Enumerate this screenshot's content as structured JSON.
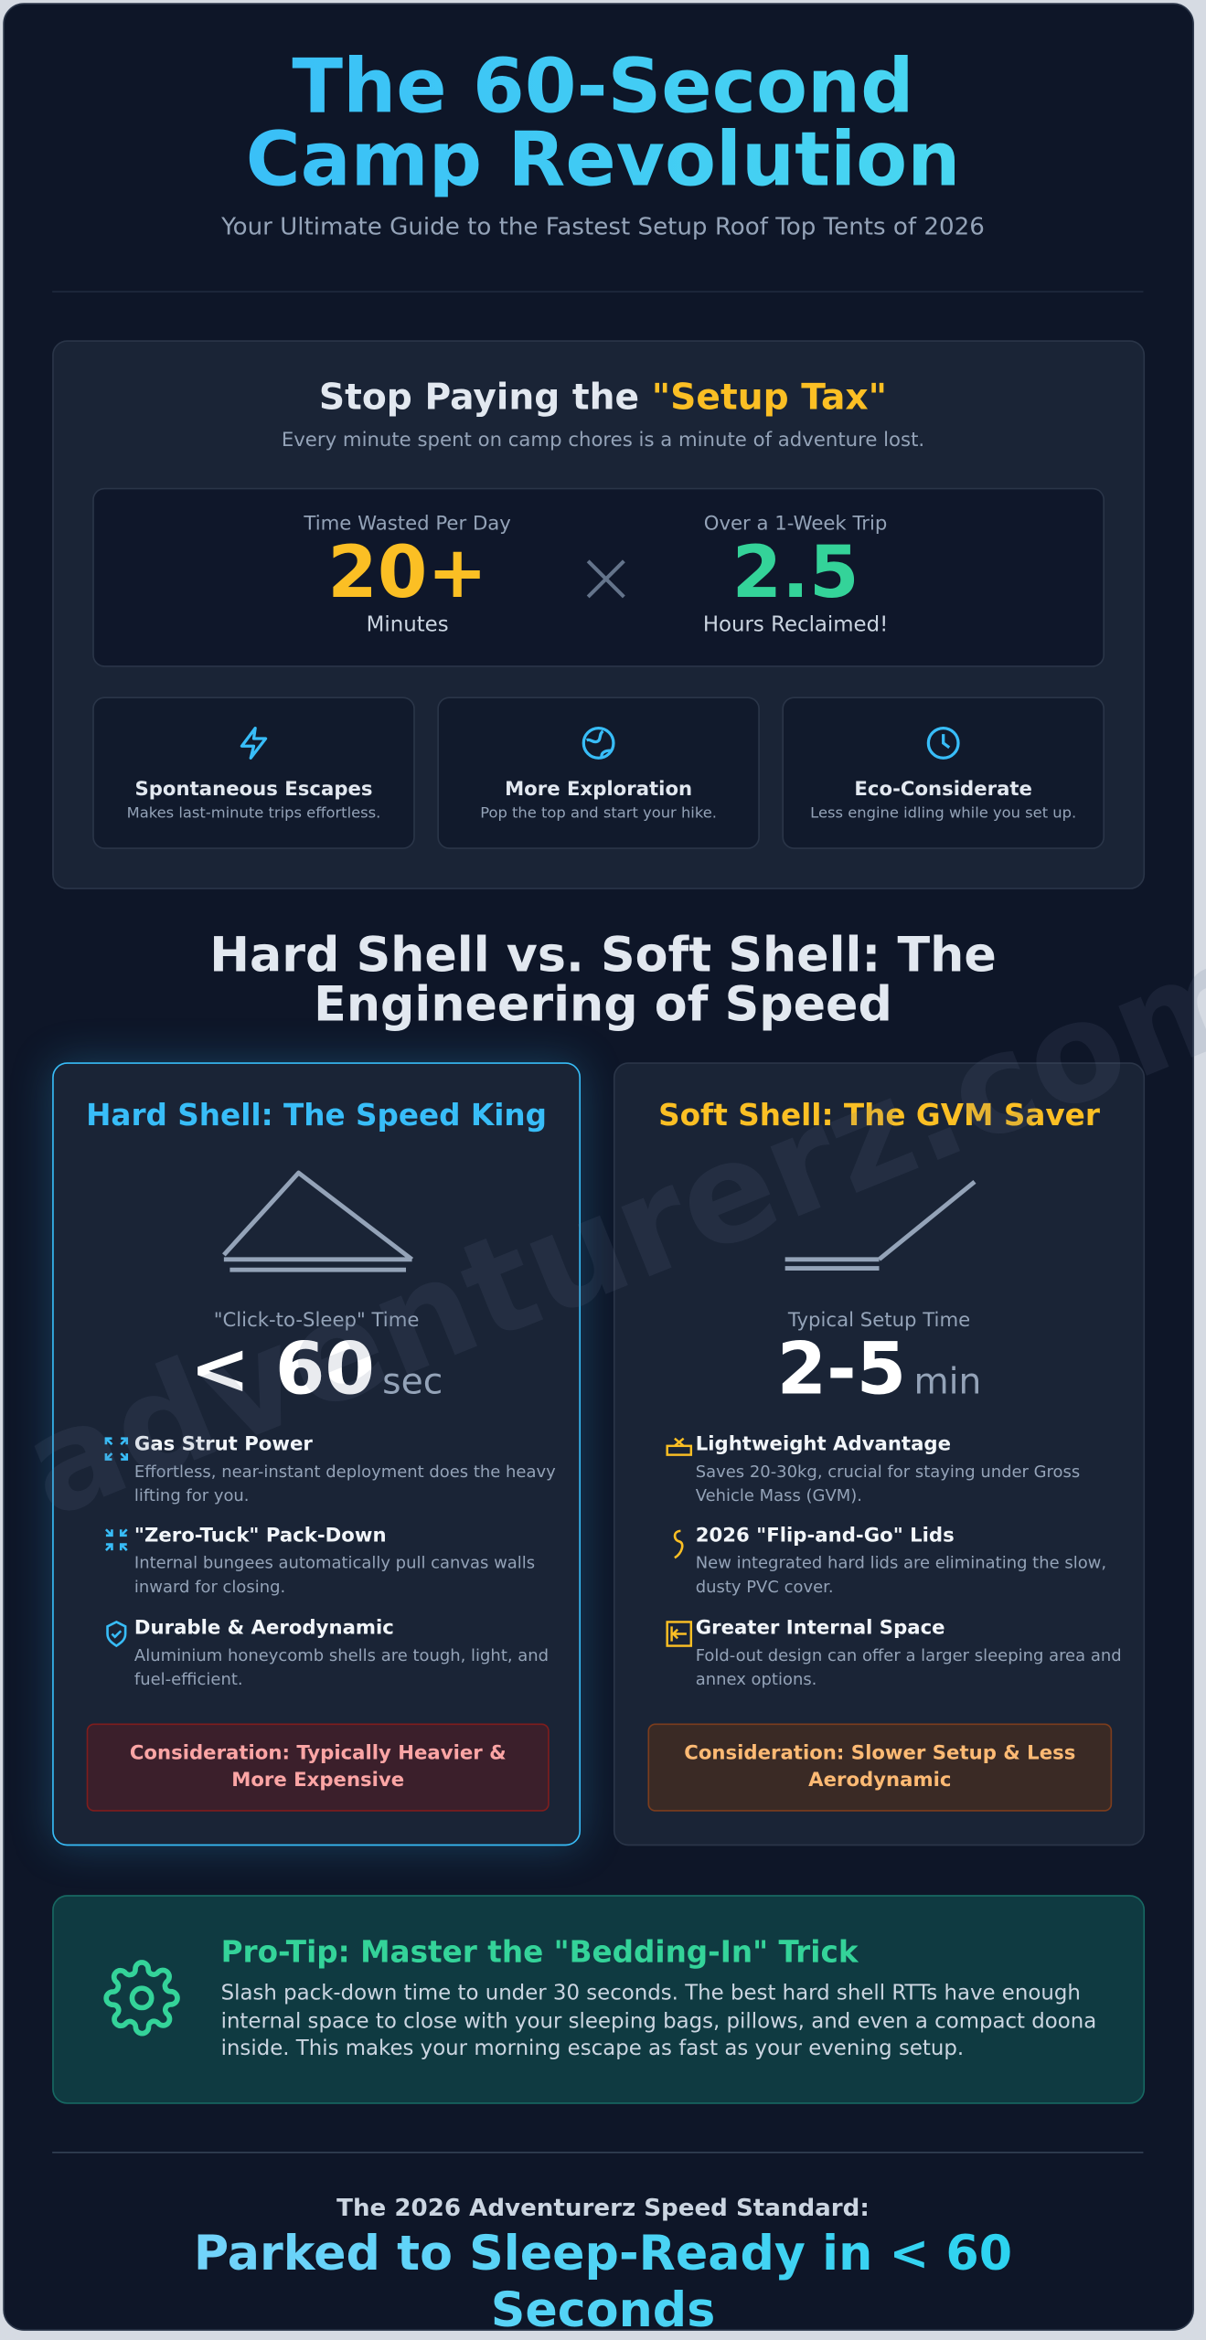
{
  "header": {
    "title": "The 60-Second Camp Revolution",
    "subtitle": "Your Ultimate Guide to the Fastest Setup Roof Top Tents of 2026"
  },
  "setup_tax": {
    "title": "Stop Paying the ",
    "highlight": "\"Setup Tax\"",
    "subtitle": "Every minute spent on camp chores is a minute of adventure lost.",
    "stats": [
      {
        "label": "Time Wasted Per Day",
        "value": "20+",
        "unit": "Minutes"
      },
      {
        "label": "Over a 1-Week Trip",
        "value": "2.5",
        "unit": "Hours Reclaimed!"
      }
    ],
    "benefits": [
      {
        "title": "Spontaneous Escapes",
        "text": "Makes last-minute trips effortless."
      },
      {
        "title": "More Exploration",
        "text": "Pop the top and start your hike."
      },
      {
        "title": "Eco-Considerate",
        "text": "Less engine idling while you set up."
      }
    ]
  },
  "comparison": {
    "title": "Hard Shell vs. Soft Shell: The Engineering of Speed",
    "cards": [
      {
        "title": "Hard Shell: The Speed King",
        "time_label": "\"Click-to-Sleep\" Time",
        "time_value": "< 60",
        "time_unit": "sec",
        "features": [
          {
            "title": "Gas Strut Power",
            "text": "Effortless, near-instant deployment does the heavy lifting for you."
          },
          {
            "title": "\"Zero-Tuck\" Pack-Down",
            "text": "Internal bungees automatically pull canvas walls inward for closing."
          },
          {
            "title": "Durable & Aerodynamic",
            "text": "Aluminium honeycomb shells are tough, light, and fuel-efficient."
          }
        ],
        "consideration": "Consideration: Typically Heavier & More Expensive"
      },
      {
        "title": "Soft Shell: The GVM Saver",
        "time_label": "Typical Setup Time",
        "time_value": "2-5",
        "time_unit": "min",
        "features": [
          {
            "title": "Lightweight Advantage",
            "text": "Saves 20-30kg, crucial for staying under Gross Vehicle Mass (GVM)."
          },
          {
            "title": "2026 \"Flip-and-Go\" Lids",
            "text": "New integrated hard lids are eliminating the slow, dusty PVC cover."
          },
          {
            "title": "Greater Internal Space",
            "text": "Fold-out design can offer a larger sleeping area and annex options."
          }
        ],
        "consideration": "Consideration: Slower Setup & Less Aerodynamic"
      }
    ]
  },
  "watermark": "adventurerz.com",
  "pro_tip": {
    "title": "Pro-Tip: Master the \"Bedding-In\" Trick",
    "text": "Slash pack-down time to under 30 seconds. The best hard shell RTTs have enough internal space to close with your sleeping bags, pillows, and even a compact doona inside. This makes your morning escape as fast as your evening setup."
  },
  "footer": {
    "label": "The 2026 Adventurerz Speed Standard:",
    "headline": "Parked to Sleep-Ready in < 60 Seconds"
  }
}
